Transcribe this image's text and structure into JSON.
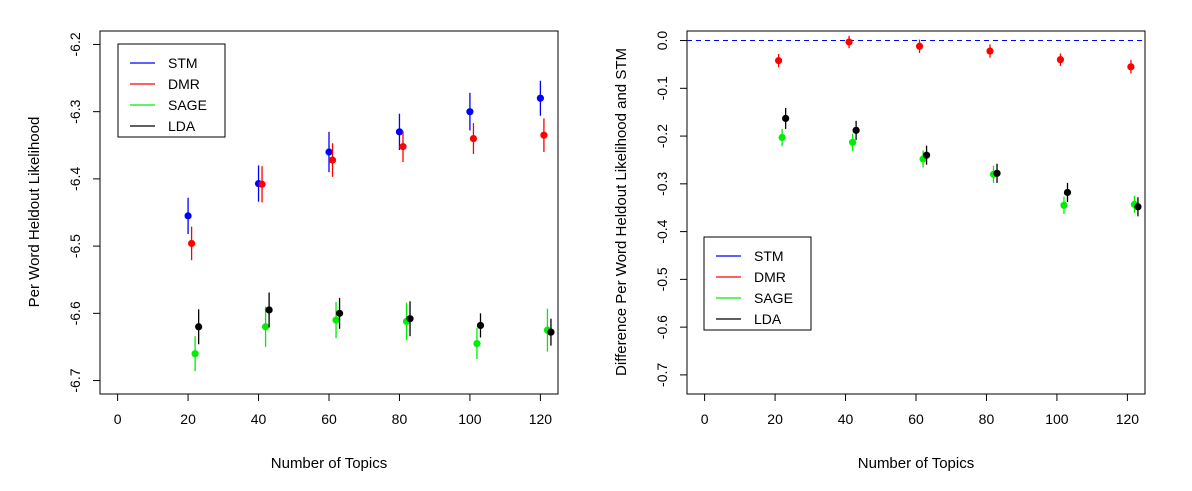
{
  "chart_data": [
    {
      "type": "scatter",
      "xlabel": "Number of Topics",
      "ylabel": "Per Word Heldout Likelihood",
      "xlim": [
        -5,
        125
      ],
      "ylim": [
        -6.72,
        -6.18
      ],
      "xticks": [
        0,
        20,
        40,
        60,
        80,
        100,
        120
      ],
      "yticks": [
        -6.2,
        -6.3,
        -6.4,
        -6.5,
        -6.6,
        -6.7
      ],
      "legend_position": "top-left",
      "series": [
        {
          "name": "STM",
          "color": "#0000ff",
          "x": [
            20,
            40,
            60,
            80,
            100,
            120
          ],
          "y": [
            -6.455,
            -6.407,
            -6.36,
            -6.33,
            -6.3,
            -6.28
          ],
          "err": [
            0.027,
            0.027,
            0.03,
            0.027,
            0.028,
            0.026
          ]
        },
        {
          "name": "DMR",
          "color": "#ff0000",
          "x": [
            21,
            41,
            61,
            81,
            101,
            121
          ],
          "y": [
            -6.496,
            -6.408,
            -6.372,
            -6.352,
            -6.34,
            -6.335
          ],
          "err": [
            0.025,
            0.027,
            0.025,
            0.023,
            0.023,
            0.025
          ]
        },
        {
          "name": "SAGE",
          "color": "#00ee00",
          "x": [
            22,
            42,
            62,
            82,
            102,
            122
          ],
          "y": [
            -6.66,
            -6.62,
            -6.61,
            -6.612,
            -6.645,
            -6.625
          ],
          "err": [
            0.026,
            0.03,
            0.027,
            0.028,
            0.023,
            0.032
          ]
        },
        {
          "name": "LDA",
          "color": "#000000",
          "x": [
            23,
            43,
            63,
            83,
            103,
            123
          ],
          "y": [
            -6.62,
            -6.595,
            -6.6,
            -6.608,
            -6.618,
            -6.628
          ],
          "err": [
            0.026,
            0.026,
            0.023,
            0.026,
            0.018,
            0.02
          ]
        }
      ]
    },
    {
      "type": "scatter",
      "xlabel": "Number of Topics",
      "ylabel": "Difference Per Word Heldout Likelihood and STM",
      "xlim": [
        -5,
        125
      ],
      "ylim": [
        -0.74,
        0.02
      ],
      "xticks": [
        0,
        20,
        40,
        60,
        80,
        100,
        120
      ],
      "yticks": [
        0.0,
        -0.1,
        -0.2,
        -0.3,
        -0.4,
        -0.5,
        -0.6,
        -0.7
      ],
      "legend_position": "bottom-left",
      "reference_line": {
        "y": 0.0,
        "color": "#0000ff",
        "style": "dashed"
      },
      "series": [
        {
          "name": "STM",
          "color": "#0000ff",
          "x": [],
          "y": [],
          "err": []
        },
        {
          "name": "DMR",
          "color": "#ff0000",
          "x": [
            21,
            41,
            61,
            81,
            101,
            121
          ],
          "y": [
            -0.042,
            -0.003,
            -0.012,
            -0.022,
            -0.04,
            -0.055
          ],
          "err": [
            0.014,
            0.013,
            0.014,
            0.014,
            0.013,
            0.014
          ]
        },
        {
          "name": "SAGE",
          "color": "#00ee00",
          "x": [
            22,
            42,
            62,
            82,
            102,
            122
          ],
          "y": [
            -0.203,
            -0.213,
            -0.248,
            -0.28,
            -0.345,
            -0.343
          ],
          "err": [
            0.018,
            0.018,
            0.018,
            0.018,
            0.018,
            0.018
          ]
        },
        {
          "name": "LDA",
          "color": "#000000",
          "x": [
            23,
            43,
            63,
            83,
            103,
            123
          ],
          "y": [
            -0.163,
            -0.188,
            -0.24,
            -0.278,
            -0.318,
            -0.348
          ],
          "err": [
            0.022,
            0.02,
            0.02,
            0.02,
            0.02,
            0.02
          ]
        }
      ]
    }
  ]
}
